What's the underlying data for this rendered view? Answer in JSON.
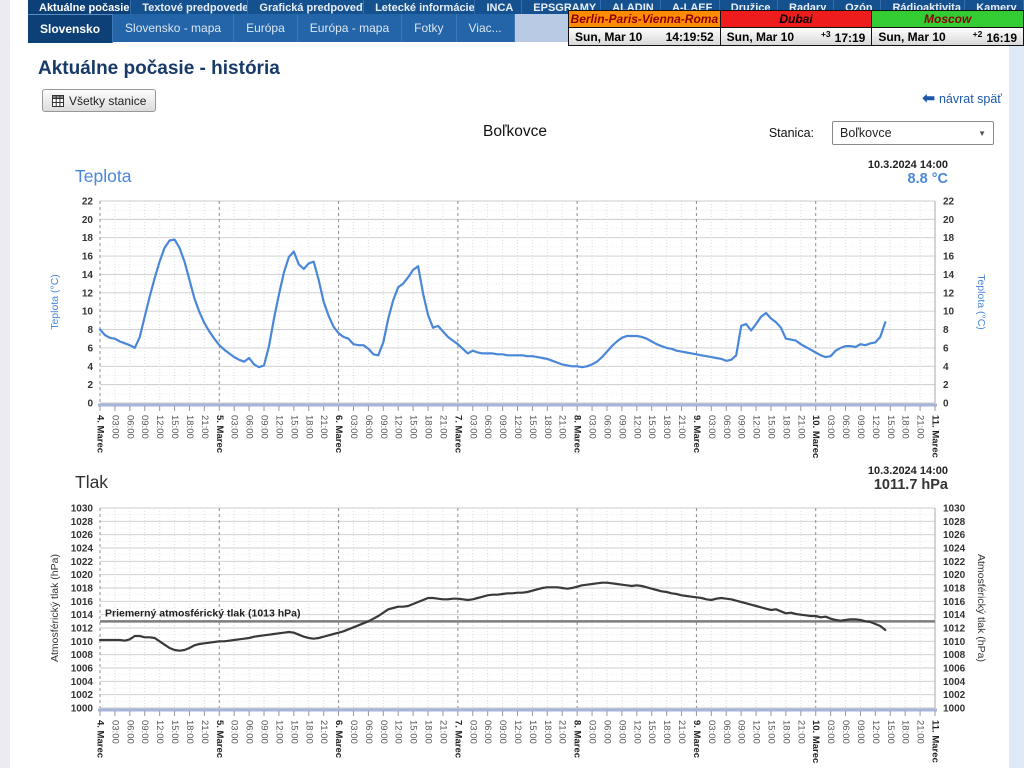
{
  "nav": {
    "top_tabs": [
      {
        "label": "Aktuálne počasie",
        "active": true
      },
      {
        "label": "Textové predpovede",
        "active": false
      },
      {
        "label": "Grafická predpoveď",
        "active": false
      },
      {
        "label": "Letecké informácie",
        "active": false
      },
      {
        "label": "INCA",
        "active": false
      },
      {
        "label": "EPSGRAMY",
        "active": false
      },
      {
        "label": "ALADIN",
        "active": false
      },
      {
        "label": "A-LAEF",
        "active": false
      },
      {
        "label": "Družice",
        "active": false
      },
      {
        "label": "Radary",
        "active": false
      },
      {
        "label": "Ozón",
        "active": false
      },
      {
        "label": "Rádioaktivita",
        "active": false
      },
      {
        "label": "Kamery",
        "active": false
      }
    ],
    "sub_tabs": [
      {
        "label": "Slovensko",
        "active": true
      },
      {
        "label": "Slovensko - mapa",
        "active": false
      },
      {
        "label": "Európa",
        "active": false
      },
      {
        "label": "Európa - mapa",
        "active": false
      },
      {
        "label": "Fotky",
        "active": false
      },
      {
        "label": "Viac...",
        "active": false
      }
    ]
  },
  "clocks": [
    {
      "name": "Berlin-Paris-Vienna-Roma",
      "header_bg": "#ff8c00",
      "header_color": "#8b0000",
      "date": "Sun, Mar 10",
      "offset": "",
      "time": "14:19:52"
    },
    {
      "name": "Dubai",
      "header_bg": "#ee1c1c",
      "header_color": "#000000",
      "date": "Sun, Mar 10",
      "offset": "+3",
      "time": "17:19"
    },
    {
      "name": "Moscow",
      "header_bg": "#33cc33",
      "header_color": "#8b0000",
      "date": "Sun, Mar 10",
      "offset": "+2",
      "time": "16:19"
    }
  ],
  "page": {
    "title": "Aktuálne počasie - história",
    "all_stations_button": "Všetky stanice",
    "back_link": "návrat späť",
    "station_title": "Boľkovce",
    "station_label": "Stanica:",
    "station_select_value": "Boľkovce"
  },
  "chart_data": [
    {
      "type": "line",
      "title": "Teplota",
      "timestamp": "10.3.2024 14:00",
      "current_value": "8.8 °C",
      "ylabel": "Teplota (°C)",
      "ylim": [
        0,
        22
      ],
      "ystep": 2,
      "x_days": [
        "4. Marec",
        "5. Marec",
        "6. Marec",
        "7. Marec",
        "8. Marec",
        "9. Marec",
        "10. Marec",
        "11. Marec"
      ],
      "x_times": [
        "03:00",
        "06:00",
        "09:00",
        "12:00",
        "15:00",
        "18:00",
        "21:00"
      ],
      "hours_per_point": 1,
      "axis_total_hours": 168,
      "line_color": "#4a87d9",
      "title_color": "#4a87d9",
      "value_color": "#4a87d9",
      "grid": true,
      "values": [
        8.0,
        7.4,
        7.1,
        7.0,
        6.7,
        6.5,
        6.3,
        6.0,
        7.2,
        9.4,
        11.6,
        13.6,
        15.4,
        16.9,
        17.7,
        17.8,
        16.9,
        15.4,
        13.4,
        11.4,
        9.9,
        8.7,
        7.8,
        7.0,
        6.3,
        5.8,
        5.4,
        5.0,
        4.7,
        4.5,
        4.9,
        4.2,
        3.9,
        4.1,
        6.2,
        9.2,
        11.8,
        14.2,
        15.9,
        16.5,
        15.1,
        14.6,
        15.2,
        15.4,
        13.4,
        11.0,
        9.5,
        8.3,
        7.6,
        7.2,
        7.0,
        6.4,
        6.3,
        6.3,
        5.9,
        5.3,
        5.2,
        6.6,
        9.2,
        11.2,
        12.6,
        13.0,
        13.7,
        14.5,
        14.9,
        11.9,
        9.6,
        8.2,
        8.4,
        7.8,
        7.2,
        6.8,
        6.4,
        5.9,
        5.4,
        5.7,
        5.5,
        5.4,
        5.4,
        5.4,
        5.3,
        5.3,
        5.2,
        5.2,
        5.2,
        5.2,
        5.1,
        5.1,
        5.0,
        4.9,
        4.8,
        4.6,
        4.4,
        4.2,
        4.1,
        4.0,
        4.0,
        3.9,
        4.0,
        4.2,
        4.5,
        5.0,
        5.6,
        6.2,
        6.7,
        7.1,
        7.3,
        7.3,
        7.3,
        7.2,
        7.0,
        6.7,
        6.4,
        6.2,
        6.0,
        5.9,
        5.7,
        5.6,
        5.5,
        5.4,
        5.3,
        5.2,
        5.1,
        5.0,
        4.9,
        4.8,
        4.6,
        4.7,
        5.2,
        8.4,
        8.6,
        7.9,
        8.6,
        9.4,
        9.8,
        9.2,
        8.8,
        8.2,
        7.0,
        6.9,
        6.8,
        6.4,
        6.1,
        5.8,
        5.5,
        5.2,
        5.0,
        5.1,
        5.7,
        6.0,
        6.2,
        6.2,
        6.1,
        6.4,
        6.3,
        6.5,
        6.6,
        7.2,
        8.8
      ]
    },
    {
      "type": "line",
      "title": "Tlak",
      "timestamp": "10.3.2024 14:00",
      "current_value": "1011.7 hPa",
      "ylabel": "Atmosférický tlak (hPa)",
      "ylim": [
        1000,
        1030
      ],
      "ystep": 2,
      "x_days": [
        "4. Marec",
        "5. Marec",
        "6. Marec",
        "7. Marec",
        "8. Marec",
        "9. Marec",
        "10. Marec",
        "11. Marec"
      ],
      "x_times": [
        "03:00",
        "06:00",
        "09:00",
        "12:00",
        "15:00",
        "18:00",
        "21:00"
      ],
      "hours_per_point": 1,
      "axis_total_hours": 168,
      "line_color": "#3a3a3a",
      "title_color": "#333333",
      "value_color": "#333333",
      "grid": true,
      "mean_line": {
        "value": 1013,
        "label": "Priemerný atmosférický tlak (1013 hPa)"
      },
      "values": [
        1010.2,
        1010.2,
        1010.2,
        1010.2,
        1010.2,
        1010.1,
        1010.3,
        1010.8,
        1010.8,
        1010.6,
        1010.6,
        1010.5,
        1010.0,
        1009.5,
        1009.0,
        1008.7,
        1008.6,
        1008.7,
        1009.0,
        1009.4,
        1009.6,
        1009.7,
        1009.8,
        1009.9,
        1010.0,
        1010.0,
        1010.1,
        1010.2,
        1010.3,
        1010.4,
        1010.5,
        1010.7,
        1010.8,
        1010.9,
        1011.0,
        1011.1,
        1011.2,
        1011.3,
        1011.4,
        1011.3,
        1011.0,
        1010.7,
        1010.5,
        1010.4,
        1010.5,
        1010.7,
        1010.9,
        1011.1,
        1011.3,
        1011.5,
        1011.8,
        1012.1,
        1012.4,
        1012.7,
        1013.0,
        1013.4,
        1013.8,
        1014.3,
        1014.8,
        1015.0,
        1015.2,
        1015.2,
        1015.3,
        1015.6,
        1015.9,
        1016.2,
        1016.5,
        1016.5,
        1016.4,
        1016.3,
        1016.3,
        1016.4,
        1016.4,
        1016.3,
        1016.2,
        1016.3,
        1016.5,
        1016.7,
        1016.9,
        1017.0,
        1017.0,
        1017.1,
        1017.2,
        1017.2,
        1017.3,
        1017.3,
        1017.4,
        1017.6,
        1017.8,
        1018.0,
        1018.1,
        1018.1,
        1018.1,
        1018.0,
        1017.9,
        1018.0,
        1018.2,
        1018.4,
        1018.5,
        1018.6,
        1018.7,
        1018.8,
        1018.8,
        1018.7,
        1018.6,
        1018.5,
        1018.4,
        1018.3,
        1018.4,
        1018.3,
        1018.1,
        1017.9,
        1017.7,
        1017.5,
        1017.4,
        1017.2,
        1017.1,
        1016.9,
        1016.8,
        1016.7,
        1016.6,
        1016.5,
        1016.3,
        1016.2,
        1016.4,
        1016.5,
        1016.4,
        1016.3,
        1016.1,
        1015.9,
        1015.7,
        1015.5,
        1015.3,
        1015.1,
        1014.9,
        1014.7,
        1014.8,
        1014.5,
        1014.2,
        1014.3,
        1014.1,
        1014.0,
        1013.9,
        1013.8,
        1013.8,
        1013.6,
        1013.7,
        1013.4,
        1013.2,
        1013.1,
        1013.2,
        1013.3,
        1013.3,
        1013.2,
        1013.0,
        1012.9,
        1012.6,
        1012.3,
        1011.7
      ]
    }
  ]
}
